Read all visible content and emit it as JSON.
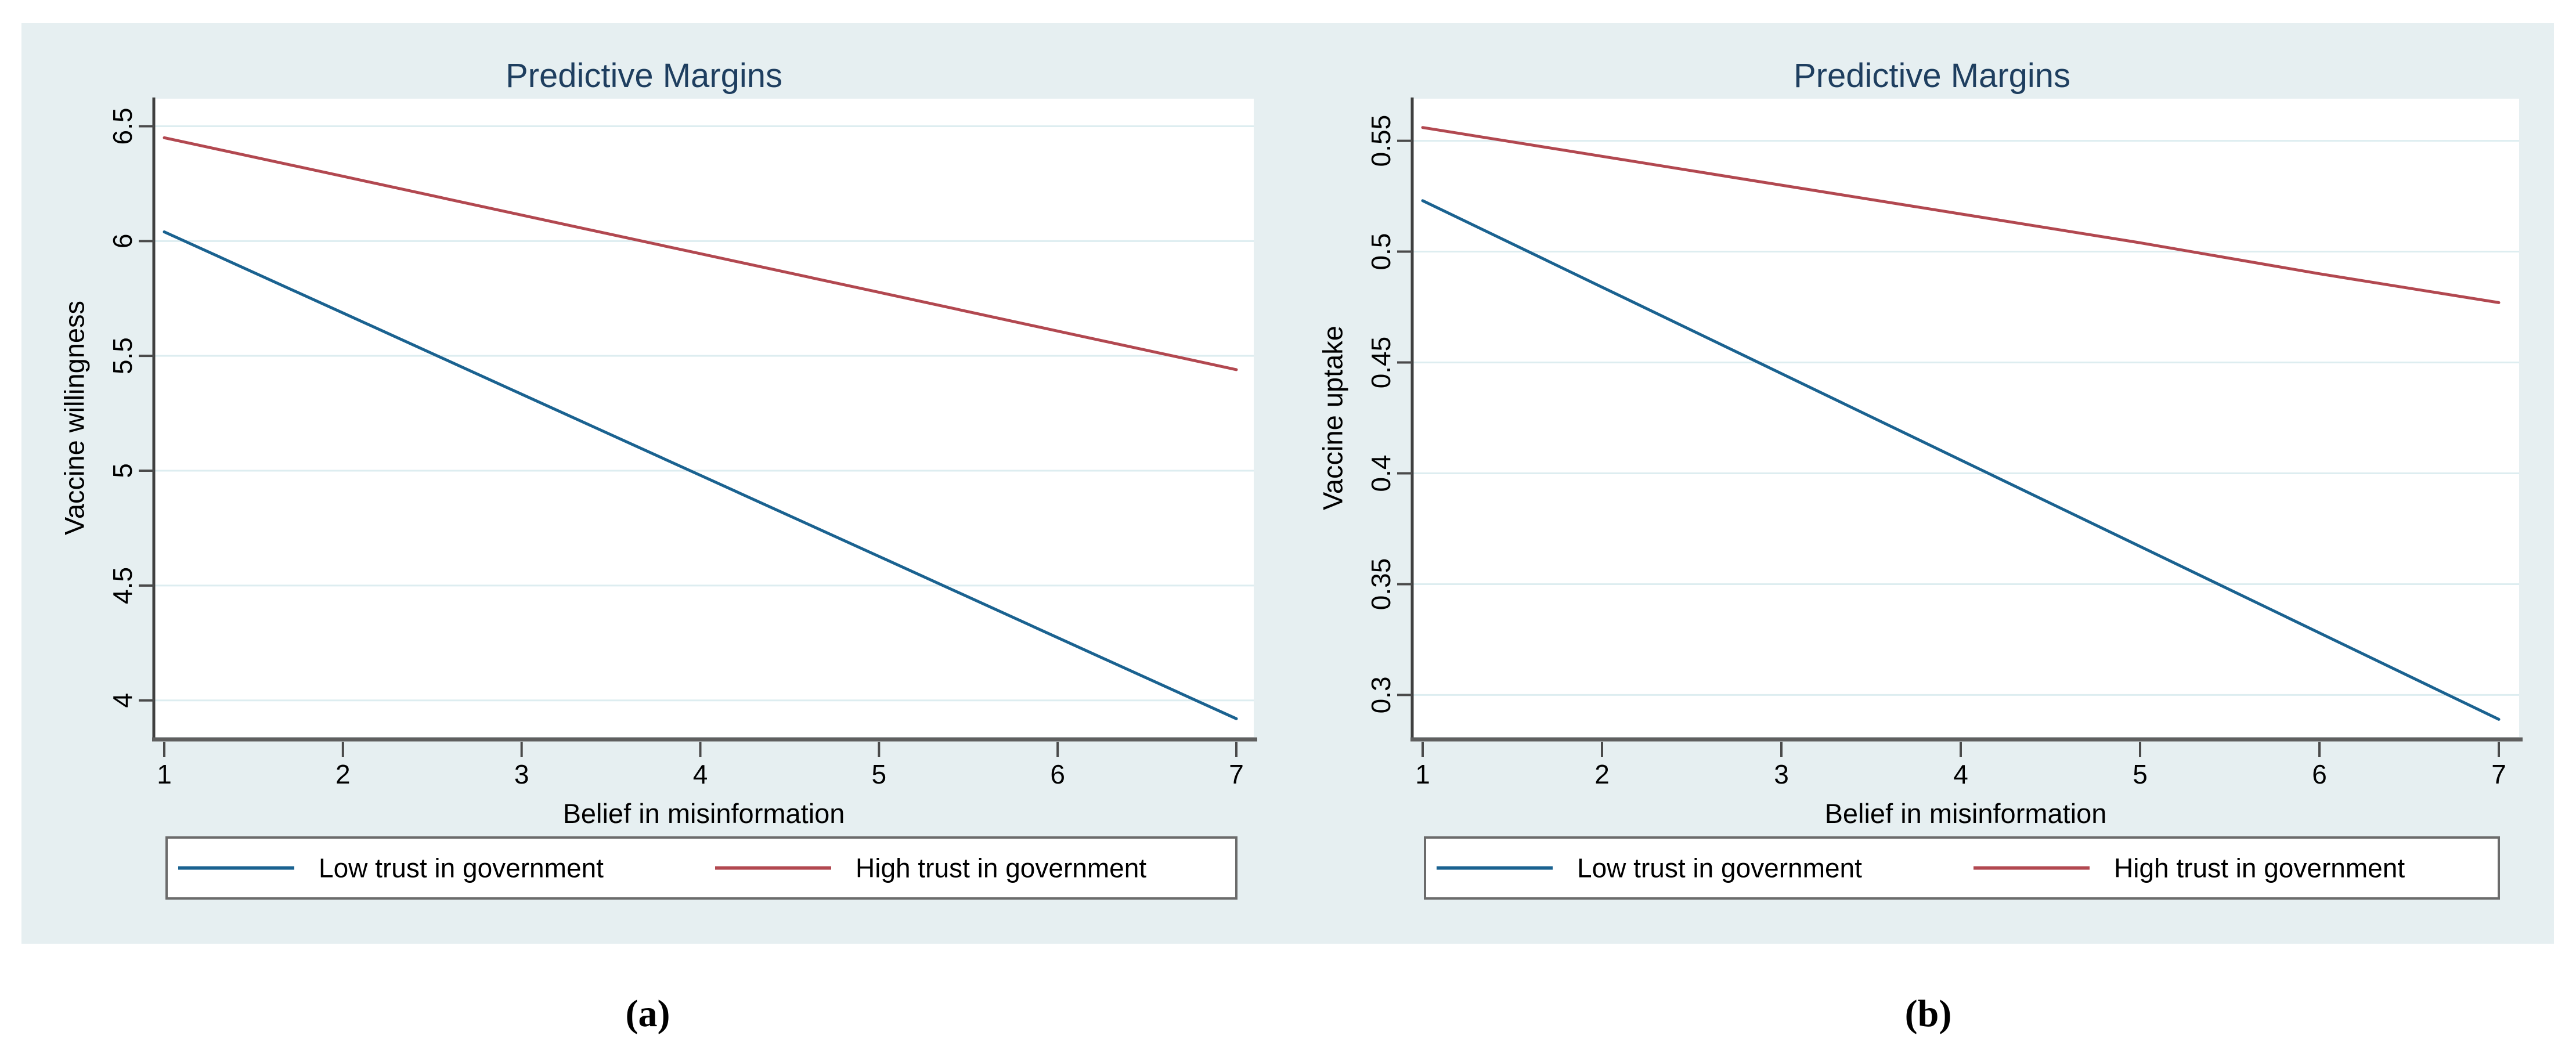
{
  "page": {
    "background": "#ffffff",
    "panel_background": "#e6eff1"
  },
  "colors": {
    "plot_background": "#ffffff",
    "grid": "#ddedf0",
    "y_axis": "#3f3f3f",
    "x_axis": "#5f5f5f",
    "tick": "#4a4a4a",
    "tick_label": "#000000",
    "title": "#1e3e5f",
    "axis_label": "#000000",
    "legend_border": "#6b6b6b",
    "legend_background": "#ffffff",
    "legend_text": "#000000",
    "low_trust_line": "#1a6290",
    "high_trust_line": "#b24850"
  },
  "chart_data": [
    {
      "type": "line",
      "title": "Predictive Margins",
      "xlabel": "Belief in misinformation",
      "ylabel": "Vaccine willingness",
      "caption": "(a)",
      "x": [
        1,
        2,
        3,
        4,
        5,
        6,
        7
      ],
      "xticks": [
        1,
        2,
        3,
        4,
        5,
        6,
        7
      ],
      "yticks": [
        6.5,
        6,
        5.5,
        5,
        4.5,
        4
      ],
      "ytick_labels": [
        "6.5",
        "6",
        "5.5",
        "5",
        "4.5",
        "4"
      ],
      "xlim": [
        1,
        7
      ],
      "ylim": [
        3.84,
        6.62
      ],
      "grid": true,
      "legend_position": "bottom",
      "series": [
        {
          "name": "Low trust in government",
          "color": "#1a6290",
          "values": [
            6.04,
            5.687,
            5.333,
            4.98,
            4.627,
            4.273,
            3.92
          ]
        },
        {
          "name": "High trust in government",
          "color": "#b24850",
          "values": [
            6.45,
            6.282,
            6.113,
            5.945,
            5.777,
            5.608,
            5.44
          ]
        }
      ]
    },
    {
      "type": "line",
      "title": "Predictive Margins",
      "xlabel": "Belief in misinformation",
      "ylabel": "Vaccine uptake",
      "caption": "(b)",
      "x": [
        1,
        2,
        3,
        4,
        5,
        6,
        7
      ],
      "xticks": [
        1,
        2,
        3,
        4,
        5,
        6,
        7
      ],
      "yticks": [
        0.55,
        0.5,
        0.45,
        0.4,
        0.35,
        0.3
      ],
      "ytick_labels": [
        "0.55",
        "0.5",
        "0.45",
        "0.4",
        "0.35",
        "0.3"
      ],
      "xlim": [
        1,
        7
      ],
      "ylim": [
        0.281,
        0.569
      ],
      "grid": true,
      "legend_position": "bottom",
      "series": [
        {
          "name": "Low trust in government",
          "color": "#1a6290",
          "values": [
            0.523,
            0.484,
            0.445,
            0.406,
            0.367,
            0.328,
            0.289
          ]
        },
        {
          "name": "High trust in government",
          "color": "#b24850",
          "values": [
            0.556,
            0.543,
            0.53,
            0.517,
            0.504,
            0.49,
            0.477
          ]
        }
      ]
    }
  ]
}
